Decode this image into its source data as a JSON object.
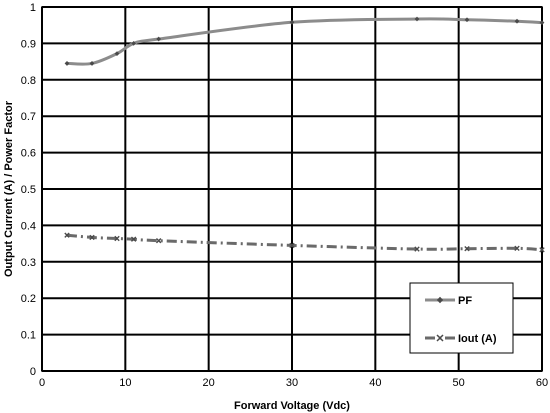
{
  "chart_data": {
    "type": "line",
    "title": "",
    "xlabel": "Forward Voltage (Vdc)",
    "ylabel": "Output Current (A) / Power Factor",
    "xlim": [
      0,
      60
    ],
    "ylim": [
      0,
      1
    ],
    "x_ticks": [
      "0",
      "10",
      "20",
      "30",
      "40",
      "50",
      "60"
    ],
    "y_ticks": [
      "0",
      "0.1",
      "0.2",
      "0.3",
      "0.4",
      "0.5",
      "0.6",
      "0.7",
      "0.8",
      "0.9",
      "1"
    ],
    "grid": true,
    "legend_position": "bottom-right",
    "series": [
      {
        "name": "PF",
        "color": "#8c8c8c",
        "line_style": "solid",
        "marker": "diamond",
        "marker_color": "#4a4a4a",
        "x": [
          3,
          6,
          9,
          11,
          14,
          30,
          45,
          51,
          57,
          60
        ],
        "y": [
          0.845,
          0.845,
          0.872,
          0.9,
          0.912,
          0.958,
          0.967,
          0.965,
          0.961,
          0.957
        ]
      },
      {
        "name": "Iout (A)",
        "color": "#6a6a6a",
        "line_style": "dash-dot",
        "marker": "x",
        "marker_color": "#4a4a4a",
        "x": [
          3,
          6,
          9,
          11,
          14,
          30,
          45,
          51,
          57,
          60
        ],
        "y": [
          0.373,
          0.367,
          0.364,
          0.362,
          0.358,
          0.345,
          0.335,
          0.336,
          0.337,
          0.333
        ]
      }
    ]
  }
}
